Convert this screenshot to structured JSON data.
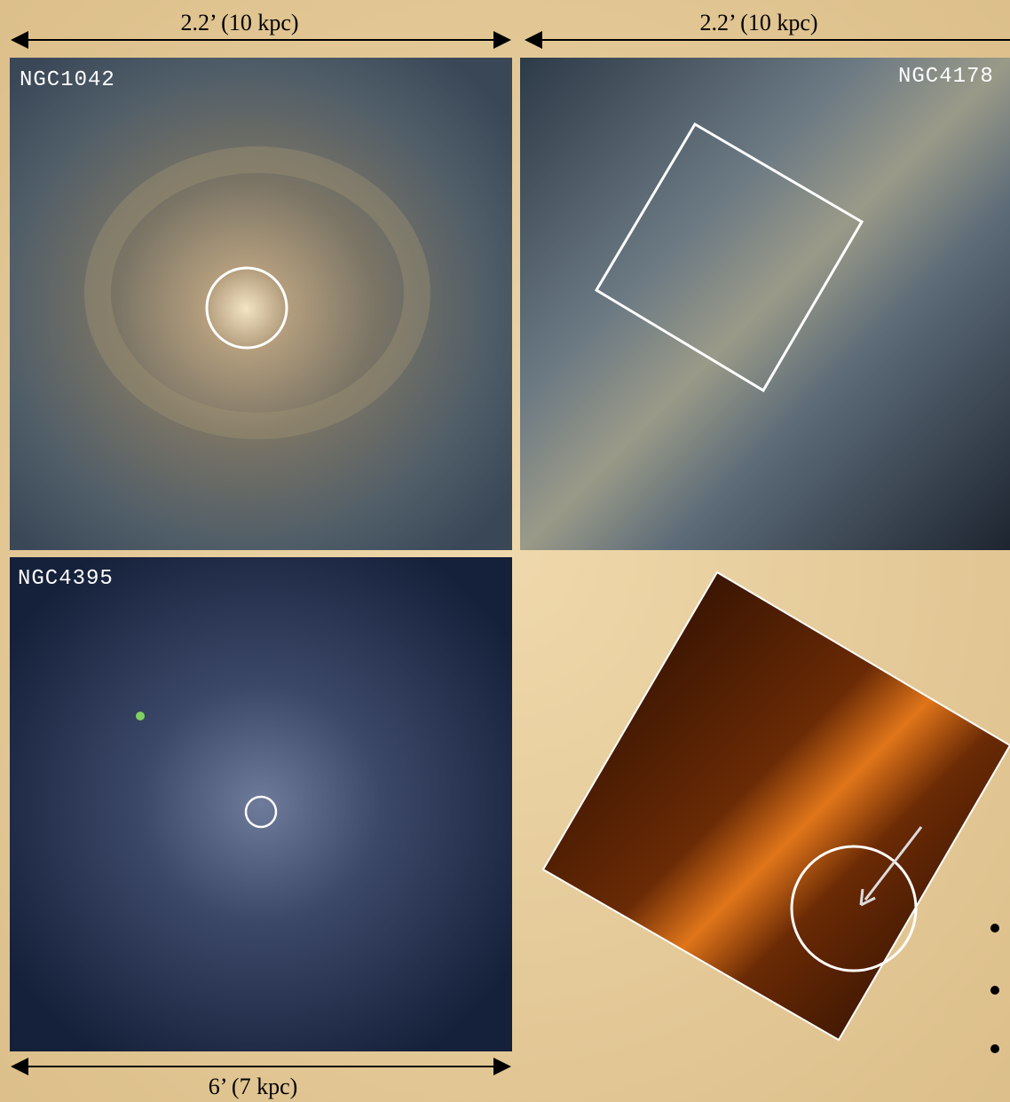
{
  "panels": [
    {
      "label": "NGC1042",
      "scale": "2.2’ (10 kpc)"
    },
    {
      "label": "NGC4178",
      "scale": "2.2’ (10 kpc)"
    },
    {
      "label": "NGC4395",
      "scale": "6’ (7 kpc)"
    }
  ]
}
